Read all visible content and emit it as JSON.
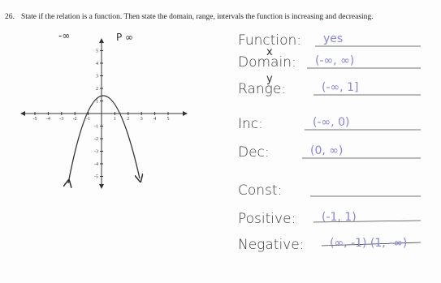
{
  "problem": {
    "number": "26.",
    "text": "State if the relation is a function. Then state the domain, range, intervals the function is increasing and decreasing."
  },
  "graph": {
    "x_tick_labels": [
      "-5",
      "-4",
      "-3",
      "-2",
      "-1",
      "1",
      "2",
      "3",
      "4",
      "5"
    ],
    "y_tick_labels": [
      "5",
      "4",
      "3",
      "2",
      "1",
      "-1",
      "-2",
      "-3",
      "-4",
      "-5"
    ],
    "notes": [
      "-∞",
      "P ∞"
    ]
  },
  "answers": [
    {
      "label": "Function:",
      "answer": "yes"
    },
    {
      "label": "Domain:",
      "note": "x",
      "answer": "(-∞, ∞)"
    },
    {
      "label": "Range:",
      "note": "y",
      "answer": "(-∞, 1]"
    },
    {
      "label": "Inc:",
      "answer": "(-∞, 0)"
    },
    {
      "label": "Dec:",
      "answer": "(0, ∞)"
    },
    {
      "label": "Const:"
    },
    {
      "label": "Positive:",
      "answer": "(-1, 1)"
    },
    {
      "label": "Negative:",
      "answer": "(∞, -1) (1, -∞)"
    }
  ]
}
